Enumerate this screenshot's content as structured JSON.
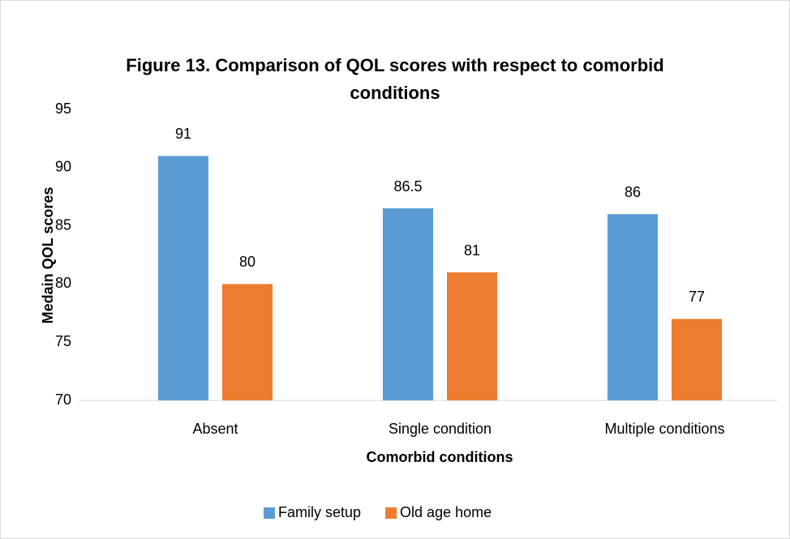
{
  "chart_data": {
    "type": "bar",
    "title": "Figure 13. Comparison of QOL scores with respect to comorbid conditions",
    "xlabel": "Comorbid conditions",
    "ylabel": "Medain QOL scores",
    "categories": [
      "Absent",
      "Single condition",
      "Multiple conditions"
    ],
    "series": [
      {
        "name": "Family setup",
        "color": "#5b9bd5",
        "values": [
          91,
          86.5,
          86
        ]
      },
      {
        "name": "Old age home",
        "color": "#ed7d31",
        "values": [
          80,
          81,
          77
        ]
      }
    ],
    "ylim": [
      70,
      95
    ],
    "yticks": [
      70,
      75,
      80,
      85,
      90,
      95
    ],
    "grid": false,
    "legend": "bottom"
  }
}
